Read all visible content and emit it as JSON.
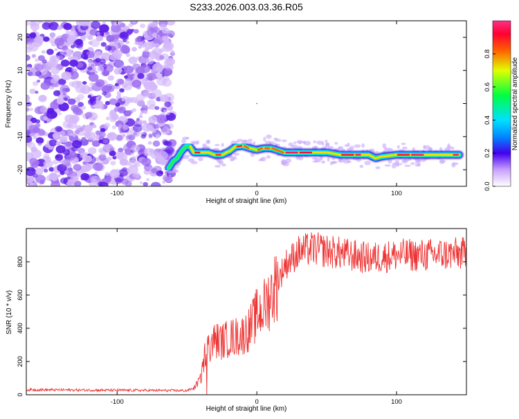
{
  "title": "S233.2026.003.03.36.R05",
  "chart_data": [
    {
      "type": "heatmap",
      "xlabel": "Height of straight line (km)",
      "ylabel": "Frequency (Hz)",
      "xlim": [
        -165,
        150
      ],
      "ylim": [
        -25,
        25
      ],
      "xticks": [
        -100,
        0,
        100
      ],
      "xtick_labels": [
        "-100",
        "0",
        "100"
      ],
      "yticks": [
        -20,
        -10,
        0,
        10,
        20
      ],
      "ytick_labels": [
        "-20",
        "-10",
        "0",
        "10",
        "20"
      ],
      "colorbar": {
        "label": "Normalized spectral amplitude",
        "range": [
          0,
          1
        ],
        "ticks": [
          0.0,
          0.2,
          0.4,
          0.6,
          0.8
        ],
        "tick_labels": [
          "0.0",
          "0.2",
          "0.4",
          "0.6",
          "0.8"
        ]
      },
      "noise_region_x": [
        -165,
        -60
      ],
      "ridge": {
        "x": [
          -63,
          -60,
          -57,
          -54,
          -51,
          -48,
          -45,
          -40,
          -35,
          -30,
          -25,
          -20,
          -15,
          -10,
          -5,
          0,
          5,
          10,
          20,
          30,
          40,
          50,
          60,
          70,
          75,
          80,
          85,
          90,
          100,
          110,
          120,
          130,
          140,
          145
        ],
        "freq_hz": [
          -19.5,
          -17.5,
          -16.5,
          -14.5,
          -13,
          -13,
          -14.8,
          -14.8,
          -14.8,
          -15.5,
          -15.5,
          -14.5,
          -13,
          -12.8,
          -13.5,
          -14,
          -13.5,
          -13.5,
          -14.8,
          -14.8,
          -14.8,
          -14.8,
          -15.5,
          -15.5,
          -15.5,
          -15.5,
          -16.5,
          -16,
          -15.5,
          -15.5,
          -15.5,
          -15.5,
          -15.5,
          -15.5
        ],
        "amplitude": [
          0.3,
          0.4,
          0.4,
          0.55,
          0.45,
          0.5,
          0.9,
          0.9,
          0.6,
          0.85,
          0.9,
          0.6,
          0.9,
          0.9,
          0.75,
          0.7,
          0.95,
          0.7,
          0.95,
          0.95,
          0.9,
          0.6,
          0.9,
          0.95,
          0.95,
          0.5,
          0.9,
          0.6,
          0.9,
          0.95,
          0.95,
          0.6,
          0.95,
          0.95
        ]
      }
    },
    {
      "type": "line",
      "xlabel": "Height of straight line (km)",
      "ylabel": "SNR (10 * v/v)",
      "xlim": [
        -165,
        150
      ],
      "ylim": [
        0,
        1000
      ],
      "xticks": [
        -100,
        0,
        100
      ],
      "xtick_labels": [
        "-100",
        "0",
        "100"
      ],
      "yticks": [
        0,
        200,
        400,
        600,
        800
      ],
      "ytick_labels": [
        "0",
        "200",
        "400",
        "600",
        "800"
      ],
      "color": "#ee3333",
      "trend": {
        "x": [
          -165,
          -50,
          -45,
          -40,
          -38,
          -36,
          -35,
          -30,
          -25,
          -20,
          -10,
          -5,
          0,
          5,
          10,
          15,
          20,
          30,
          40,
          60,
          80,
          100,
          120,
          150
        ],
        "snr": [
          30,
          25,
          40,
          100,
          200,
          300,
          280,
          330,
          320,
          340,
          360,
          400,
          480,
          520,
          600,
          680,
          780,
          860,
          880,
          850,
          820,
          840,
          840,
          850
        ]
      }
    }
  ]
}
